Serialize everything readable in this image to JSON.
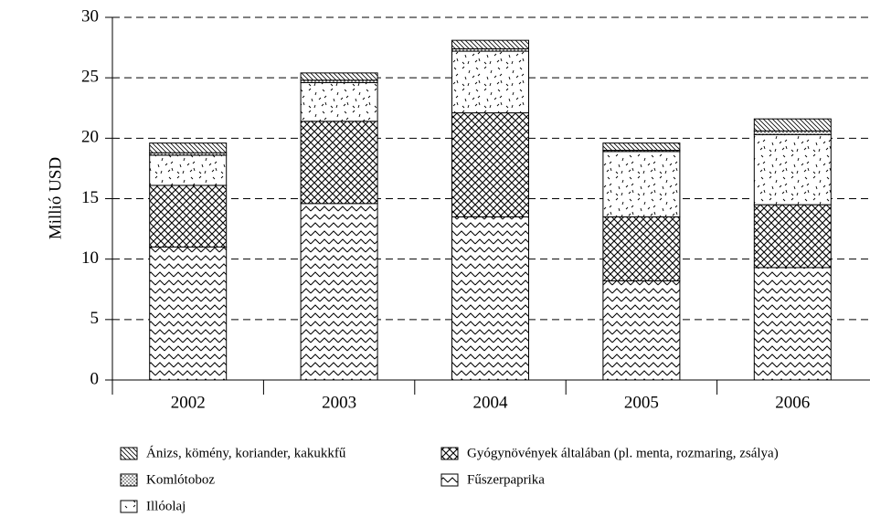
{
  "chart_data": {
    "type": "stacked_bar",
    "y_label": "Millió USD",
    "categories": [
      "2002",
      "2003",
      "2004",
      "2005",
      "2006"
    ],
    "series": [
      {
        "name": "Ánizs, kömény, koriander, kakukkfű",
        "values": [
          0.8,
          0.6,
          0.7,
          0.6,
          1.0
        ]
      },
      {
        "name": "Komlótoboz",
        "values": [
          0.2,
          0.2,
          0.2,
          0.1,
          0.3
        ]
      },
      {
        "name": "Illóolaj",
        "values": [
          2.5,
          3.2,
          5.1,
          5.4,
          5.8
        ]
      },
      {
        "name": "Gyógynövények általában (pl. menta, rozmaring, zsálya)",
        "values": [
          5.1,
          6.8,
          8.6,
          5.3,
          5.2
        ]
      },
      {
        "name": "Fűszerpaprika",
        "values": [
          11.0,
          14.6,
          13.5,
          8.2,
          9.3
        ]
      }
    ],
    "ylim": [
      0,
      30
    ],
    "yticks": [
      0,
      5,
      10,
      15,
      20,
      25,
      30
    ],
    "grid": true
  }
}
